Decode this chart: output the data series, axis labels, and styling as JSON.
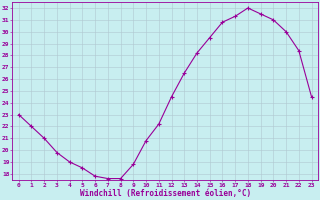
{
  "x": [
    0,
    1,
    2,
    3,
    4,
    5,
    6,
    7,
    8,
    9,
    10,
    11,
    12,
    13,
    14,
    15,
    16,
    17,
    18,
    19,
    20,
    21,
    22,
    23
  ],
  "y": [
    23.0,
    22.0,
    21.0,
    19.8,
    19.0,
    18.5,
    17.8,
    17.6,
    17.6,
    18.8,
    20.8,
    22.2,
    24.5,
    26.5,
    28.2,
    29.5,
    30.8,
    31.3,
    32.0,
    31.5,
    31.0,
    30.0,
    28.4,
    24.5
  ],
  "line_color": "#990099",
  "marker": "+",
  "marker_size": 3,
  "marker_lw": 0.8,
  "bg_color": "#c8eef0",
  "grid_color": "#b0c8d0",
  "xlabel": "Windchill (Refroidissement éolien,°C)",
  "xlabel_color": "#990099",
  "yticks": [
    18,
    19,
    20,
    21,
    22,
    23,
    24,
    25,
    26,
    27,
    28,
    29,
    30,
    31,
    32
  ],
  "xlim": [
    -0.5,
    23.5
  ],
  "ylim": [
    17.5,
    32.5
  ],
  "tick_color": "#990099",
  "axis_color": "#990099",
  "tick_fontsize": 4.5,
  "xlabel_fontsize": 5.5,
  "line_width": 0.8
}
